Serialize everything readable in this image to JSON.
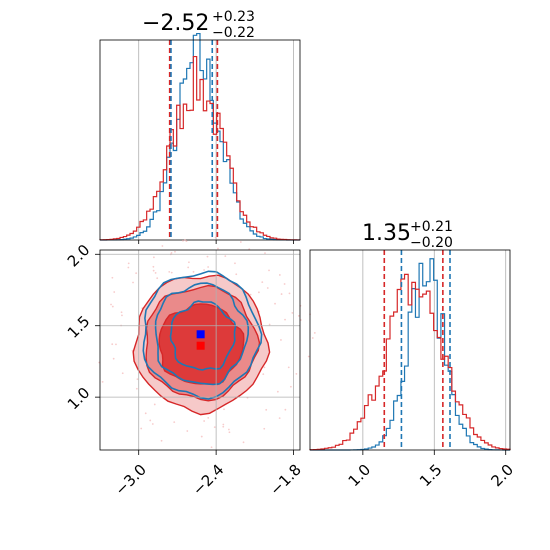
{
  "chart_data": {
    "type": "corner",
    "colors": {
      "blue": "#1f77b4",
      "red": "#d62728",
      "red_fill": "#f08080",
      "red_dark": "#d62728",
      "blue_marker": "#0000ff",
      "red_marker": "#ff0000",
      "grid": "#b0b0b0"
    },
    "parameters": [
      {
        "title": {
          "main": "−2.52",
          "sup": "+0.23",
          "sub": "−0.22"
        },
        "range": [
          -3.3,
          -1.75
        ],
        "ticks": [
          -3.0,
          -2.4,
          -1.8
        ],
        "tick_labels": [
          "−3.0",
          "−2.4",
          "−1.8"
        ],
        "quantiles_red": [
          -2.76,
          -2.39
        ],
        "quantiles_blue": [
          -2.75,
          -2.43
        ]
      },
      {
        "title": {
          "main": "1.35",
          "sup": "+0.21",
          "sub": "−0.20"
        },
        "range": [
          0.63,
          2.03
        ],
        "ticks": [
          1.0,
          1.5,
          2.0
        ],
        "tick_labels": [
          "1.0",
          "1.5",
          "2.0"
        ],
        "quantiles_red": [
          1.15,
          1.56
        ],
        "quantiles_blue": [
          1.27,
          1.61
        ]
      }
    ],
    "histograms": {
      "x_blue": {
        "mean": -2.54,
        "sd": 0.17
      },
      "x_red": {
        "mean": -2.55,
        "sd": 0.2
      },
      "y_blue": {
        "mean": 1.44,
        "sd": 0.13
      },
      "y_red": {
        "mean": 1.36,
        "sd": 0.2
      }
    },
    "markers": [
      {
        "name": "blue",
        "x": -2.52,
        "y": 1.44
      },
      {
        "name": "red",
        "x": -2.52,
        "y": 1.36
      }
    ]
  }
}
